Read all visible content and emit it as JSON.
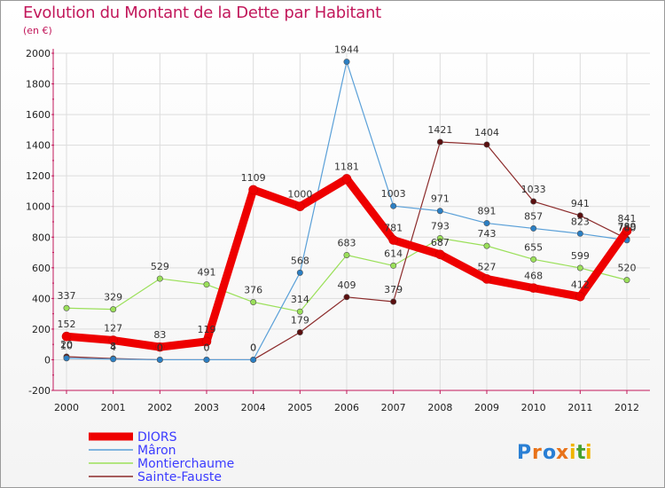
{
  "title": "Evolution du Montant de la Dette par Habitant",
  "subtitle": "(en €)",
  "brand": {
    "text": "Proxiti",
    "letters": [
      "P",
      "r",
      "o",
      "x",
      "i",
      "t",
      "i"
    ],
    "colors": [
      "#2a7fd4",
      "#e8731a",
      "#2a7fd4",
      "#e8731a",
      "#f0b400",
      "#47a12f",
      "#f0b400"
    ]
  },
  "chart_data": {
    "type": "line",
    "categories": [
      "2000",
      "2001",
      "2002",
      "2003",
      "2004",
      "2005",
      "2006",
      "2007",
      "2008",
      "2009",
      "2010",
      "2011",
      "2012"
    ],
    "ylim": [
      -200,
      2000
    ],
    "yticks": [
      -200,
      0,
      200,
      400,
      600,
      800,
      1000,
      1200,
      1400,
      1600,
      1800,
      2000
    ],
    "grid": true,
    "legend": "bottom-left",
    "series": [
      {
        "name": "Montierchaume",
        "color": "#9be05a",
        "width": 1.2,
        "values": [
          337,
          329,
          529,
          491,
          376,
          314,
          683,
          614,
          793,
          743,
          655,
          599,
          520
        ],
        "labels": [
          "337",
          "329",
          "529",
          "491",
          "376",
          "314",
          "683",
          "614",
          "793",
          "743",
          "655",
          "599",
          "520"
        ]
      },
      {
        "name": "Sainte-Fauste",
        "color": "#8b2a2a",
        "pointColor": "#5a0f0f",
        "width": 1.2,
        "values": [
          20,
          8,
          0,
          0,
          0,
          179,
          409,
          379,
          1421,
          1404,
          1033,
          941,
          789
        ],
        "labels": [
          "20",
          "8",
          "0",
          "0",
          "0",
          "179",
          "409",
          "379",
          "1421",
          "1404",
          "1033",
          "941",
          "789"
        ]
      },
      {
        "name": "Mâron",
        "color": "#5aa0d8",
        "pointColor": "#2b7fc4",
        "width": 1.2,
        "values": [
          10,
          4,
          0,
          0,
          0,
          568,
          1944,
          1003,
          971,
          891,
          857,
          823,
          780
        ],
        "labels": [
          "10",
          "4",
          "0",
          "0",
          "0",
          "568",
          "1944",
          "1003",
          "971",
          "891",
          "857",
          "823",
          "780"
        ]
      },
      {
        "name": "DIORS",
        "color": "#ee0000",
        "width": 9,
        "values": [
          152,
          127,
          83,
          119,
          1109,
          1000,
          1181,
          781,
          687,
          527,
          468,
          412,
          841
        ],
        "labels": [
          "152",
          "127",
          "83",
          "119",
          "1109",
          "1000",
          "1181",
          "781",
          "687",
          "527",
          "468",
          "412",
          "841"
        ]
      }
    ],
    "legend_order": [
      "DIORS",
      "Mâron",
      "Montierchaume",
      "Sainte-Fauste"
    ]
  }
}
